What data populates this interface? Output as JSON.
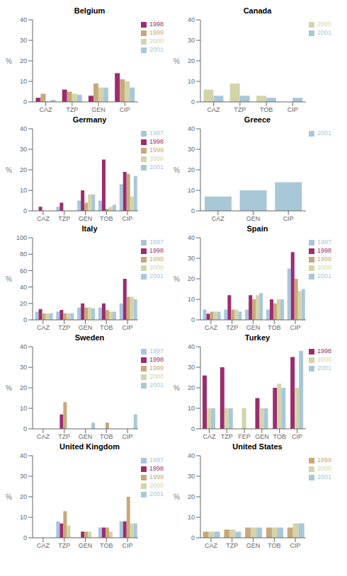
{
  "chart_data": [
    {
      "type": "bar",
      "title": "Belgium",
      "y_label": "%",
      "categories": [
        "CAZ",
        "TZP",
        "GEN",
        "CIP"
      ],
      "series": [
        {
          "name": "1998",
          "color": "#9b2d6e",
          "values": [
            2,
            6,
            3,
            14
          ]
        },
        {
          "name": "1999",
          "color": "#c8a87a",
          "values": [
            4,
            5,
            9,
            11
          ]
        },
        {
          "name": "2000",
          "color": "#d4d4aa",
          "values": [
            0.5,
            4,
            7,
            10
          ]
        },
        {
          "name": "2001",
          "color": "#a8c8d8",
          "values": [
            1,
            3.5,
            7,
            7
          ]
        }
      ],
      "ylim": [
        0,
        40
      ],
      "yticks": [
        0,
        10,
        20,
        30,
        40
      ],
      "grid": false,
      "legend": "right"
    },
    {
      "type": "bar",
      "title": "Canada",
      "y_label": "%",
      "categories": [
        "CAZ",
        "TZP",
        "TOB",
        "CIP"
      ],
      "series": [
        {
          "name": "2000",
          "color": "#d4d4aa",
          "values": [
            6,
            9,
            3,
            0
          ]
        },
        {
          "name": "2001",
          "color": "#a8c8d8",
          "values": [
            3,
            3,
            2,
            2
          ]
        }
      ],
      "ylim": [
        0,
        40
      ],
      "yticks": [
        0,
        10,
        20,
        30,
        40
      ],
      "grid": false,
      "legend": "right"
    },
    {
      "type": "bar",
      "title": "Germany",
      "y_label": "%",
      "categories": [
        "CAZ",
        "TZP",
        "GEN",
        "TOB",
        "CIP"
      ],
      "series": [
        {
          "name": "1997",
          "color": "#a8c4e0",
          "values": [
            0,
            2,
            5,
            5,
            13
          ]
        },
        {
          "name": "1998",
          "color": "#9b2d6e",
          "values": [
            2,
            4,
            10,
            25,
            19
          ]
        },
        {
          "name": "1999",
          "color": "#c8a87a",
          "values": [
            0,
            0,
            4,
            1,
            18
          ]
        },
        {
          "name": "2000",
          "color": "#d4d4aa",
          "values": [
            0,
            0,
            8,
            2,
            7
          ]
        },
        {
          "name": "2001",
          "color": "#a8c8d8",
          "values": [
            0,
            0,
            8,
            3,
            17
          ]
        }
      ],
      "ylim": [
        0,
        40
      ],
      "yticks": [
        0,
        10,
        20,
        30,
        40
      ],
      "grid": false,
      "legend": "right"
    },
    {
      "type": "bar",
      "title": "Greece",
      "y_label": "%",
      "categories": [
        "CAZ",
        "GEN",
        "CIP"
      ],
      "series": [
        {
          "name": "2001",
          "color": "#a8c8d8",
          "values": [
            7,
            10,
            14
          ]
        }
      ],
      "ylim": [
        0,
        40
      ],
      "yticks": [
        0,
        10,
        20,
        30,
        40
      ],
      "grid": false,
      "legend": "right"
    },
    {
      "type": "bar",
      "title": "Italy",
      "y_label": "%",
      "categories": [
        "CAZ",
        "TZP",
        "GEN",
        "TOB",
        "CIP"
      ],
      "series": [
        {
          "name": "1997",
          "color": "#a8c4e0",
          "values": [
            10,
            10,
            15,
            15,
            20
          ]
        },
        {
          "name": "1998",
          "color": "#9b2d6e",
          "values": [
            13,
            12,
            20,
            20,
            50
          ]
        },
        {
          "name": "1999",
          "color": "#c8a87a",
          "values": [
            8,
            8,
            15,
            12,
            28
          ]
        },
        {
          "name": "2000",
          "color": "#d4d4aa",
          "values": [
            8,
            8,
            15,
            10,
            28
          ]
        },
        {
          "name": "2001",
          "color": "#a8c8d8",
          "values": [
            8,
            8,
            14,
            10,
            25
          ]
        }
      ],
      "ylim": [
        0,
        100
      ],
      "yticks": [
        0,
        20,
        40,
        60,
        80,
        100
      ],
      "grid": false,
      "legend": "right"
    },
    {
      "type": "bar",
      "title": "Spain",
      "y_label": "%",
      "categories": [
        "CAZ",
        "TZP",
        "GEN",
        "TOB",
        "CIP"
      ],
      "series": [
        {
          "name": "1997",
          "color": "#a8c4e0",
          "values": [
            5,
            5,
            5,
            5,
            25
          ]
        },
        {
          "name": "1998",
          "color": "#9b2d6e",
          "values": [
            3,
            12,
            12,
            10,
            33
          ]
        },
        {
          "name": "1999",
          "color": "#c8a87a",
          "values": [
            4,
            5,
            10,
            8,
            20
          ]
        },
        {
          "name": "2000",
          "color": "#d4d4aa",
          "values": [
            4,
            5,
            12,
            10,
            14
          ]
        },
        {
          "name": "2001",
          "color": "#a8c8d8",
          "values": [
            4,
            4,
            13,
            10,
            15
          ]
        }
      ],
      "ylim": [
        0,
        40
      ],
      "yticks": [
        0,
        10,
        20,
        30,
        40
      ],
      "grid": false,
      "legend": "right"
    },
    {
      "type": "bar",
      "title": "Sweden",
      "y_label": "%",
      "categories": [
        "CAZ",
        "TZP",
        "GEN",
        "TOB",
        "CIP"
      ],
      "series": [
        {
          "name": "1997",
          "color": "#a8c4e0",
          "values": [
            0,
            0,
            0,
            0,
            0
          ]
        },
        {
          "name": "1998",
          "color": "#9b2d6e",
          "values": [
            0,
            7,
            0,
            0,
            0
          ]
        },
        {
          "name": "1999",
          "color": "#c8a87a",
          "values": [
            0,
            13,
            0,
            3,
            0
          ]
        },
        {
          "name": "2000",
          "color": "#d4d4aa",
          "values": [
            0,
            0,
            0,
            0,
            0
          ]
        },
        {
          "name": "2001",
          "color": "#a8c8d8",
          "values": [
            0,
            0,
            3,
            0,
            7
          ]
        }
      ],
      "ylim": [
        0,
        40
      ],
      "yticks": [
        0,
        10,
        20,
        30,
        40
      ],
      "grid": false,
      "legend": "right"
    },
    {
      "type": "bar",
      "title": "Turkey",
      "y_label": "%",
      "categories": [
        "CAZ",
        "TZP",
        "FEP",
        "GEN",
        "TOB",
        "CIP"
      ],
      "series": [
        {
          "name": "1998",
          "color": "#9b2d6e",
          "values": [
            26,
            30,
            0,
            15,
            20,
            35
          ]
        },
        {
          "name": "2000",
          "color": "#d4d4aa",
          "values": [
            10,
            10,
            10,
            10,
            22,
            20
          ]
        },
        {
          "name": "2001",
          "color": "#a8c8d8",
          "values": [
            10,
            10,
            0,
            10,
            20,
            38
          ]
        }
      ],
      "ylim": [
        0,
        40
      ],
      "yticks": [
        0,
        10,
        20,
        30,
        40
      ],
      "grid": false,
      "legend": "right"
    },
    {
      "type": "bar",
      "title": "United Kingdom",
      "y_label": "%",
      "categories": [
        "CAZ",
        "TZP",
        "GEN",
        "TOB",
        "CIP"
      ],
      "series": [
        {
          "name": "1997",
          "color": "#a8c4e0",
          "values": [
            0,
            8,
            0,
            5,
            8
          ]
        },
        {
          "name": "1998",
          "color": "#9b2d6e",
          "values": [
            0,
            7,
            3,
            5,
            8
          ]
        },
        {
          "name": "1999",
          "color": "#c8a87a",
          "values": [
            0,
            13,
            3,
            5,
            20
          ]
        },
        {
          "name": "2000",
          "color": "#d4d4aa",
          "values": [
            0,
            6,
            3,
            3,
            7
          ]
        },
        {
          "name": "2001",
          "color": "#a8c8d8",
          "values": [
            0,
            0,
            0,
            0,
            7
          ]
        }
      ],
      "ylim": [
        0,
        40
      ],
      "yticks": [
        0,
        10,
        20,
        30,
        40
      ],
      "grid": false,
      "legend": "right"
    },
    {
      "type": "bar",
      "title": "United States",
      "y_label": "%",
      "categories": [
        "CAZ",
        "TZP",
        "GEN",
        "TOB",
        "CIP"
      ],
      "series": [
        {
          "name": "1999",
          "color": "#c8a87a",
          "values": [
            3,
            4,
            5,
            5,
            5
          ]
        },
        {
          "name": "2000",
          "color": "#d4d4aa",
          "values": [
            3,
            4,
            5,
            5,
            7
          ]
        },
        {
          "name": "2001",
          "color": "#a8c8d8",
          "values": [
            3,
            3,
            5,
            5,
            7
          ]
        }
      ],
      "ylim": [
        0,
        40
      ],
      "yticks": [
        0,
        10,
        20,
        30,
        40
      ],
      "grid": false,
      "legend": "right"
    }
  ]
}
